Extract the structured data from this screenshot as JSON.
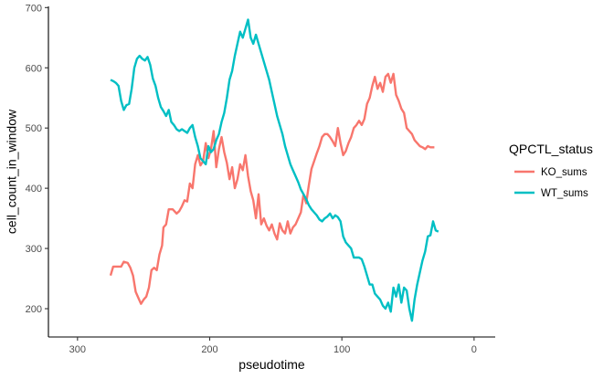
{
  "chart_data": {
    "type": "line",
    "title": "",
    "xlabel": "pseudotime",
    "ylabel": "cell_count_in_window",
    "x_reversed": true,
    "xlim": [
      322,
      -16
    ],
    "ylim": [
      153,
      702
    ],
    "xticks": [
      300,
      200,
      100,
      0
    ],
    "yticks": [
      200,
      300,
      400,
      500,
      600,
      700
    ],
    "grid": false,
    "legend": {
      "title": "QPCTL_status",
      "position": "right"
    },
    "series": [
      {
        "name": "KO_sums",
        "color": "#F8766D",
        "points": [
          [
            275,
            255
          ],
          [
            273,
            270
          ],
          [
            270,
            270
          ],
          [
            267,
            270
          ],
          [
            265,
            278
          ],
          [
            262,
            276
          ],
          [
            260,
            268
          ],
          [
            258,
            255
          ],
          [
            256,
            228
          ],
          [
            254,
            218
          ],
          [
            252,
            208
          ],
          [
            250,
            215
          ],
          [
            248,
            220
          ],
          [
            246,
            235
          ],
          [
            244,
            264
          ],
          [
            242,
            268
          ],
          [
            240,
            264
          ],
          [
            238,
            290
          ],
          [
            236,
            305
          ],
          [
            235,
            335
          ],
          [
            233,
            340
          ],
          [
            231,
            365
          ],
          [
            228,
            365
          ],
          [
            225,
            358
          ],
          [
            223,
            362
          ],
          [
            221,
            370
          ],
          [
            219,
            380
          ],
          [
            217,
            378
          ],
          [
            215,
            408
          ],
          [
            213,
            400
          ],
          [
            211,
            440
          ],
          [
            209,
            455
          ],
          [
            207,
            438
          ],
          [
            205,
            445
          ],
          [
            203,
            475
          ],
          [
            201,
            450
          ],
          [
            199,
            465
          ],
          [
            197,
            495
          ],
          [
            195,
            435
          ],
          [
            193,
            465
          ],
          [
            191,
            485
          ],
          [
            189,
            460
          ],
          [
            187,
            442
          ],
          [
            185,
            415
          ],
          [
            183,
            435
          ],
          [
            181,
            400
          ],
          [
            179,
            415
          ],
          [
            177,
            440
          ],
          [
            175,
            430
          ],
          [
            173,
            455
          ],
          [
            171,
            420
          ],
          [
            169,
            395
          ],
          [
            167,
            380
          ],
          [
            165,
            350
          ],
          [
            163,
            390
          ],
          [
            161,
            340
          ],
          [
            159,
            350
          ],
          [
            157,
            338
          ],
          [
            155,
            330
          ],
          [
            153,
            340
          ],
          [
            151,
            325
          ],
          [
            149,
            315
          ],
          [
            147,
            342
          ],
          [
            145,
            330
          ],
          [
            143,
            325
          ],
          [
            141,
            345
          ],
          [
            139,
            325
          ],
          [
            137,
            335
          ],
          [
            135,
            340
          ],
          [
            133,
            350
          ],
          [
            131,
            360
          ],
          [
            129,
            390
          ],
          [
            127,
            375
          ],
          [
            125,
            405
          ],
          [
            123,
            432
          ],
          [
            121,
            445
          ],
          [
            119,
            458
          ],
          [
            117,
            470
          ],
          [
            115,
            485
          ],
          [
            113,
            490
          ],
          [
            111,
            490
          ],
          [
            109,
            485
          ],
          [
            107,
            478
          ],
          [
            105,
            470
          ],
          [
            103,
            500
          ],
          [
            101,
            475
          ],
          [
            99,
            455
          ],
          [
            97,
            462
          ],
          [
            95,
            475
          ],
          [
            93,
            485
          ],
          [
            91,
            500
          ],
          [
            89,
            505
          ],
          [
            87,
            512
          ],
          [
            85,
            505
          ],
          [
            83,
            515
          ],
          [
            81,
            540
          ],
          [
            79,
            550
          ],
          [
            77,
            570
          ],
          [
            75,
            585
          ],
          [
            73,
            565
          ],
          [
            71,
            575
          ],
          [
            69,
            560
          ],
          [
            67,
            585
          ],
          [
            65,
            590
          ],
          [
            63,
            575
          ],
          [
            61,
            590
          ],
          [
            59,
            555
          ],
          [
            57,
            545
          ],
          [
            55,
            532
          ],
          [
            53,
            525
          ],
          [
            51,
            500
          ],
          [
            49,
            495
          ],
          [
            47,
            490
          ],
          [
            45,
            480
          ],
          [
            43,
            475
          ],
          [
            41,
            470
          ],
          [
            39,
            468
          ],
          [
            37,
            465
          ],
          [
            35,
            470
          ],
          [
            33,
            468
          ],
          [
            30,
            468
          ]
        ]
      },
      {
        "name": "WT_sums",
        "color": "#00BFC4",
        "points": [
          [
            275,
            580
          ],
          [
            273,
            578
          ],
          [
            271,
            575
          ],
          [
            269,
            570
          ],
          [
            267,
            545
          ],
          [
            265,
            530
          ],
          [
            263,
            538
          ],
          [
            261,
            540
          ],
          [
            259,
            565
          ],
          [
            257,
            600
          ],
          [
            255,
            615
          ],
          [
            253,
            620
          ],
          [
            251,
            615
          ],
          [
            249,
            612
          ],
          [
            247,
            618
          ],
          [
            245,
            605
          ],
          [
            243,
            582
          ],
          [
            241,
            570
          ],
          [
            239,
            550
          ],
          [
            237,
            535
          ],
          [
            235,
            528
          ],
          [
            233,
            520
          ],
          [
            231,
            530
          ],
          [
            229,
            510
          ],
          [
            227,
            505
          ],
          [
            225,
            498
          ],
          [
            223,
            495
          ],
          [
            221,
            498
          ],
          [
            219,
            495
          ],
          [
            217,
            492
          ],
          [
            215,
            500
          ],
          [
            213,
            505
          ],
          [
            211,
            485
          ],
          [
            209,
            470
          ],
          [
            207,
            450
          ],
          [
            205,
            445
          ],
          [
            203,
            440
          ],
          [
            201,
            470
          ],
          [
            199,
            460
          ],
          [
            197,
            465
          ],
          [
            195,
            480
          ],
          [
            193,
            490
          ],
          [
            191,
            510
          ],
          [
            189,
            525
          ],
          [
            187,
            550
          ],
          [
            185,
            580
          ],
          [
            183,
            595
          ],
          [
            181,
            620
          ],
          [
            179,
            640
          ],
          [
            177,
            660
          ],
          [
            175,
            650
          ],
          [
            173,
            665
          ],
          [
            171,
            680
          ],
          [
            169,
            650
          ],
          [
            167,
            640
          ],
          [
            165,
            655
          ],
          [
            163,
            640
          ],
          [
            161,
            625
          ],
          [
            159,
            610
          ],
          [
            157,
            595
          ],
          [
            155,
            580
          ],
          [
            153,
            560
          ],
          [
            151,
            540
          ],
          [
            149,
            520
          ],
          [
            147,
            505
          ],
          [
            145,
            490
          ],
          [
            143,
            470
          ],
          [
            141,
            455
          ],
          [
            139,
            440
          ],
          [
            137,
            430
          ],
          [
            135,
            420
          ],
          [
            133,
            410
          ],
          [
            131,
            398
          ],
          [
            129,
            390
          ],
          [
            127,
            382
          ],
          [
            125,
            372
          ],
          [
            123,
            365
          ],
          [
            121,
            360
          ],
          [
            119,
            355
          ],
          [
            117,
            348
          ],
          [
            115,
            345
          ],
          [
            113,
            350
          ],
          [
            111,
            353
          ],
          [
            109,
            358
          ],
          [
            107,
            350
          ],
          [
            105,
            355
          ],
          [
            103,
            352
          ],
          [
            101,
            345
          ],
          [
            99,
            320
          ],
          [
            97,
            310
          ],
          [
            95,
            305
          ],
          [
            93,
            300
          ],
          [
            91,
            285
          ],
          [
            89,
            285
          ],
          [
            87,
            285
          ],
          [
            85,
            282
          ],
          [
            83,
            270
          ],
          [
            81,
            255
          ],
          [
            79,
            240
          ],
          [
            77,
            240
          ],
          [
            75,
            225
          ],
          [
            73,
            220
          ],
          [
            71,
            215
          ],
          [
            69,
            205
          ],
          [
            67,
            200
          ],
          [
            65,
            210
          ],
          [
            63,
            195
          ],
          [
            61,
            235
          ],
          [
            59,
            220
          ],
          [
            57,
            240
          ],
          [
            55,
            210
          ],
          [
            53,
            235
          ],
          [
            51,
            230
          ],
          [
            49,
            200
          ],
          [
            47,
            180
          ],
          [
            45,
            215
          ],
          [
            43,
            240
          ],
          [
            41,
            260
          ],
          [
            39,
            280
          ],
          [
            37,
            295
          ],
          [
            35,
            320
          ],
          [
            33,
            322
          ],
          [
            31,
            345
          ],
          [
            29,
            330
          ],
          [
            27,
            328
          ]
        ]
      }
    ]
  }
}
